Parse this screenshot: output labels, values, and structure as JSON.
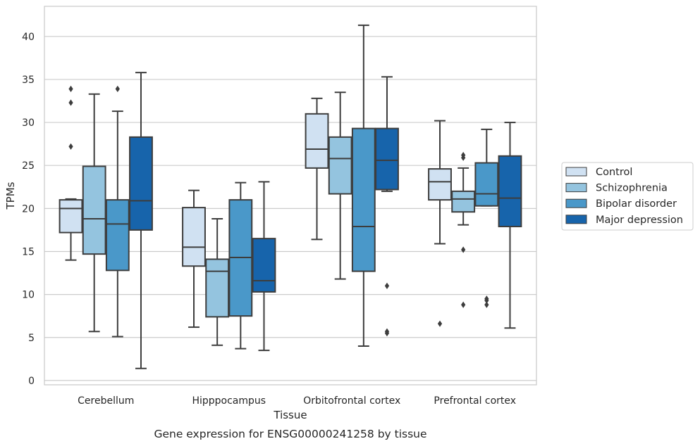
{
  "chart_data": {
    "type": "box",
    "title": "",
    "caption": "Gene expression for ENSG00000241258 by tissue",
    "xlabel": "Tissue",
    "ylabel": "TPMs",
    "ylim": [
      -0.5,
      43.5
    ],
    "yticks": [
      0,
      5,
      10,
      15,
      20,
      25,
      30,
      35,
      40
    ],
    "grid": true,
    "legend_position": "right",
    "categories": [
      "Cerebellum",
      "Hipppocampus",
      "Orbitofrontal cortex",
      "Prefrontal cortex"
    ],
    "series": [
      {
        "name": "Control",
        "color": "#d0e1f2",
        "boxes": [
          {
            "whisker_low": 14.0,
            "q1": 17.2,
            "median": 20.0,
            "q3": 21.0,
            "whisker_high": 21.1,
            "outliers": [
              27.2,
              32.3,
              33.9
            ]
          },
          {
            "whisker_low": 6.2,
            "q1": 13.3,
            "median": 15.5,
            "q3": 20.1,
            "whisker_high": 22.1,
            "outliers": []
          },
          {
            "whisker_low": 16.4,
            "q1": 24.7,
            "median": 26.9,
            "q3": 31.0,
            "whisker_high": 32.8,
            "outliers": []
          },
          {
            "whisker_low": 15.9,
            "q1": 21.0,
            "median": 23.1,
            "q3": 24.6,
            "whisker_high": 30.2,
            "outliers": [
              6.6
            ]
          }
        ]
      },
      {
        "name": "Schizophrenia",
        "color": "#94c4df",
        "boxes": [
          {
            "whisker_low": 5.7,
            "q1": 14.7,
            "median": 18.8,
            "q3": 24.9,
            "whisker_high": 33.3,
            "outliers": []
          },
          {
            "whisker_low": 4.1,
            "q1": 7.4,
            "median": 12.7,
            "q3": 14.1,
            "whisker_high": 18.8,
            "outliers": []
          },
          {
            "whisker_low": 11.8,
            "q1": 21.7,
            "median": 25.8,
            "q3": 28.3,
            "whisker_high": 33.5,
            "outliers": []
          },
          {
            "whisker_low": 18.1,
            "q1": 19.6,
            "median": 21.1,
            "q3": 22.0,
            "whisker_high": 24.7,
            "outliers": [
              8.8,
              15.2,
              25.9,
              26.2
            ]
          }
        ]
      },
      {
        "name": "Bipolar disorder",
        "color": "#4a98c9",
        "boxes": [
          {
            "whisker_low": 5.1,
            "q1": 12.8,
            "median": 18.2,
            "q3": 21.0,
            "whisker_high": 31.3,
            "outliers": [
              33.9
            ]
          },
          {
            "whisker_low": 3.7,
            "q1": 7.5,
            "median": 14.3,
            "q3": 21.0,
            "whisker_high": 23.0,
            "outliers": []
          },
          {
            "whisker_low": 4.0,
            "q1": 12.7,
            "median": 17.9,
            "q3": 29.3,
            "whisker_high": 41.3,
            "outliers": []
          },
          {
            "whisker_low": 20.3,
            "q1": 20.3,
            "median": 21.7,
            "q3": 25.3,
            "whisker_high": 29.2,
            "outliers": [
              8.8,
              9.3,
              9.5
            ]
          }
        ]
      },
      {
        "name": "Major depression",
        "color": "#1764ab",
        "boxes": [
          {
            "whisker_low": 1.4,
            "q1": 17.5,
            "median": 20.9,
            "q3": 28.3,
            "whisker_high": 35.8,
            "outliers": []
          },
          {
            "whisker_low": 3.5,
            "q1": 10.3,
            "median": 11.6,
            "q3": 16.5,
            "whisker_high": 23.1,
            "outliers": []
          },
          {
            "whisker_low": 22.0,
            "q1": 22.2,
            "median": 25.6,
            "q3": 29.3,
            "whisker_high": 35.3,
            "outliers": [
              5.5,
              5.7,
              11.0
            ]
          },
          {
            "whisker_low": 6.1,
            "q1": 17.9,
            "median": 21.2,
            "q3": 26.1,
            "whisker_high": 30.0,
            "outliers": []
          }
        ]
      }
    ]
  }
}
